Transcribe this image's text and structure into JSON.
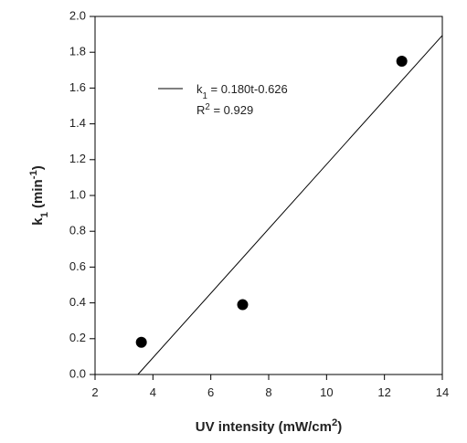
{
  "chart_data": {
    "type": "scatter",
    "xlabel": [
      "UV intensity (mW/cm",
      "2",
      ")"
    ],
    "ylabel": [
      "k",
      "1",
      " (min",
      "-1",
      ")"
    ],
    "points": {
      "x": [
        3.6,
        7.1,
        12.6
      ],
      "values": [
        0.18,
        0.39,
        1.75
      ],
      "color": "#000000"
    },
    "fit_line": {
      "x": [
        3.48,
        14
      ],
      "values": [
        0,
        1.894
      ],
      "color": "#000000",
      "legend": [
        "k",
        "1",
        " = 0.180t-0.626"
      ]
    },
    "annotations": [
      [
        "R",
        "2",
        " = 0.929"
      ]
    ],
    "xlim": [
      2,
      14
    ],
    "xticks": [
      2,
      4,
      6,
      8,
      10,
      12,
      14
    ],
    "ylim": [
      0,
      2
    ],
    "yticks": [
      {
        "value": 0,
        "label": "0.0"
      },
      0.2,
      0.4,
      0.6,
      0.8,
      {
        "value": 1,
        "label": "1.0"
      },
      1.2,
      1.4,
      1.6,
      1.8,
      {
        "value": 2,
        "label": "2.0"
      }
    ],
    "grid": false
  }
}
